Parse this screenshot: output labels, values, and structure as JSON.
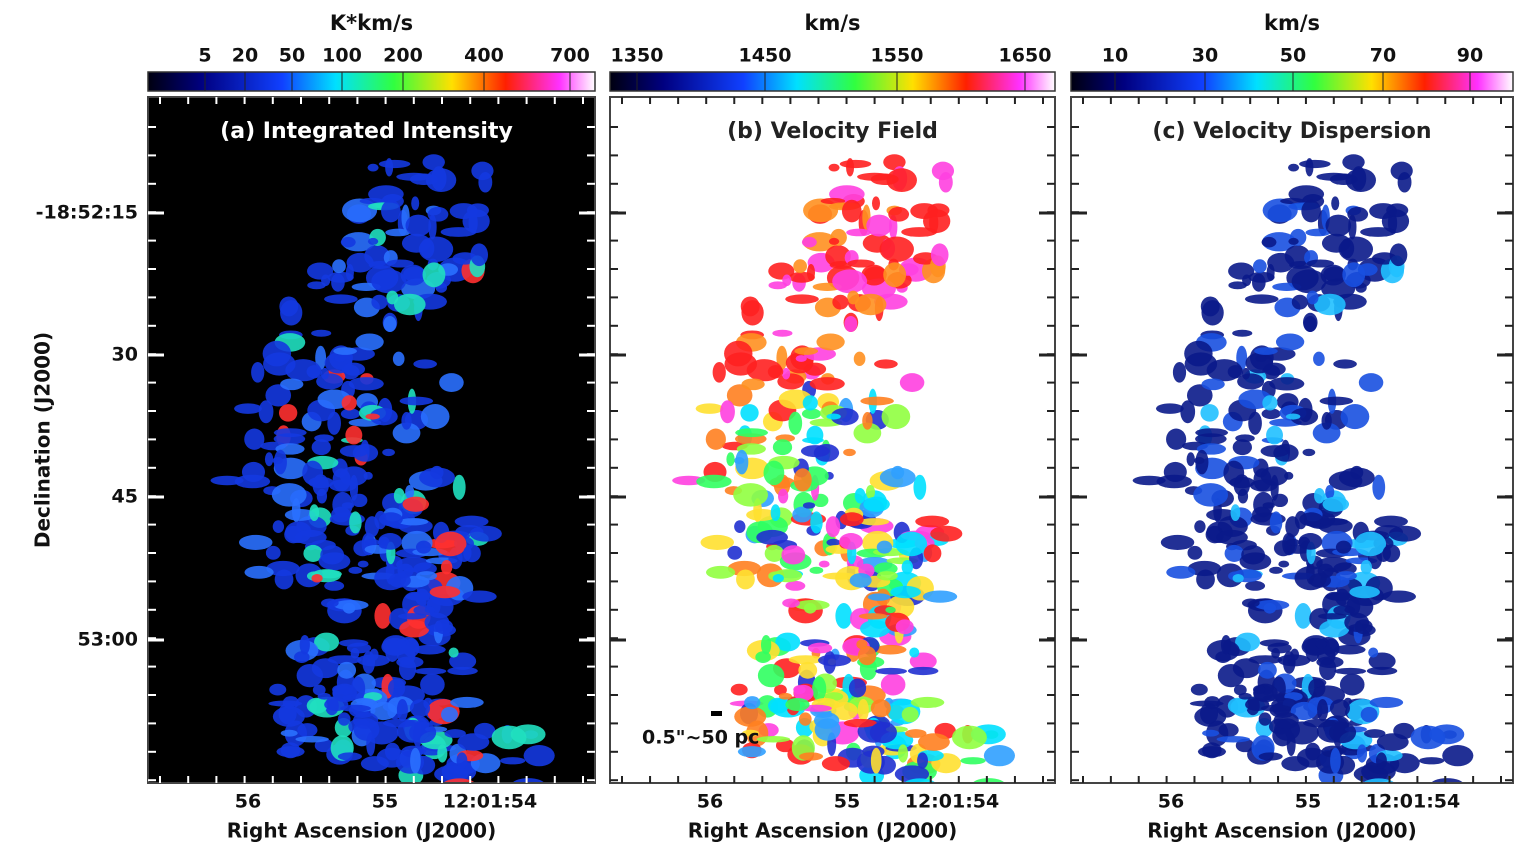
{
  "figure": {
    "panels": [
      {
        "colorbar_label": "K*km/s",
        "colorbar_ticks": [
          5,
          20,
          50,
          100,
          200,
          400,
          700
        ],
        "title": "(a) Integrated Intensity"
      },
      {
        "colorbar_label": "km/s",
        "colorbar_ticks": [
          1350,
          1450,
          1550,
          1650
        ],
        "title": "(b) Velocity Field",
        "scale_bar": "0.5\"~50 pc"
      },
      {
        "colorbar_label": "km/s",
        "colorbar_ticks": [
          10,
          30,
          50,
          70,
          90
        ],
        "title": "(c) Velocity Dispersion"
      }
    ],
    "x_axis": {
      "label": "Right Ascension (J2000)",
      "ticks": [
        "56",
        "55",
        "12:01:54"
      ]
    },
    "y_axis": {
      "label": "Declination (J2000)",
      "ticks": [
        "-18:52:15",
        "30",
        "45",
        "53:00"
      ]
    }
  }
}
